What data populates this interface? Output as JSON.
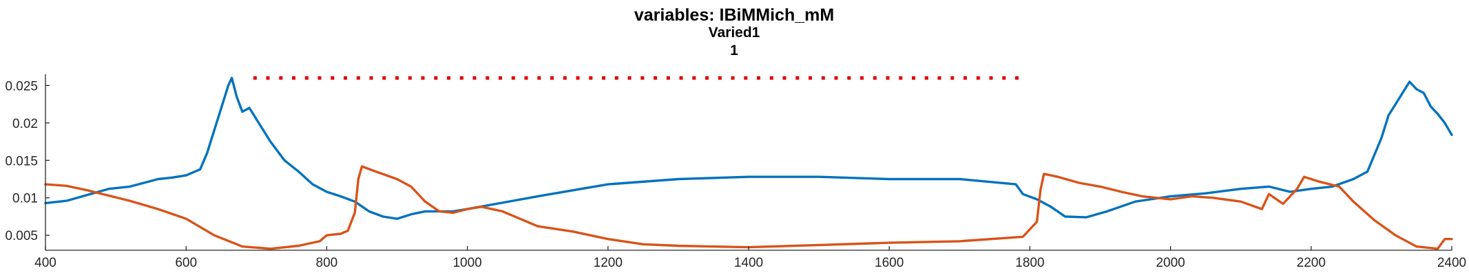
{
  "chart_data": {
    "type": "line",
    "title": "variables: IBiMMich_mM",
    "subtitle": "Varied1",
    "subtitle2": "1",
    "xlabel": "",
    "ylabel": "",
    "xlim": [
      400,
      2400
    ],
    "ylim": [
      0.003,
      0.0265
    ],
    "xticks": [
      400,
      600,
      800,
      1000,
      1200,
      1400,
      1600,
      1800,
      2000,
      2200,
      2400
    ],
    "xtick_labels": [
      "400",
      "600",
      "800",
      "1000",
      "1200",
      "1400",
      "1600",
      "1800",
      "2000",
      "2200",
      "2400"
    ],
    "yticks": [
      0.005,
      0.01,
      0.015,
      0.02,
      0.025
    ],
    "ytick_labels": [
      "0.005",
      "0.01",
      "0.015",
      "0.02",
      "0.025"
    ],
    "grid": false,
    "series": [
      {
        "color": "#0072BD",
        "points": [
          [
            400,
            0.0093
          ],
          [
            430,
            0.0096
          ],
          [
            460,
            0.0104
          ],
          [
            490,
            0.0112
          ],
          [
            520,
            0.0115
          ],
          [
            540,
            0.012
          ],
          [
            560,
            0.0125
          ],
          [
            580,
            0.0127
          ],
          [
            600,
            0.013
          ],
          [
            620,
            0.0138
          ],
          [
            630,
            0.016
          ],
          [
            640,
            0.019
          ],
          [
            650,
            0.022
          ],
          [
            660,
            0.025
          ],
          [
            665,
            0.026
          ],
          [
            672,
            0.0235
          ],
          [
            680,
            0.0215
          ],
          [
            690,
            0.022
          ],
          [
            700,
            0.0205
          ],
          [
            720,
            0.0175
          ],
          [
            740,
            0.015
          ],
          [
            760,
            0.0135
          ],
          [
            780,
            0.0118
          ],
          [
            800,
            0.0108
          ],
          [
            820,
            0.0102
          ],
          [
            840,
            0.0095
          ],
          [
            860,
            0.0082
          ],
          [
            880,
            0.0075
          ],
          [
            900,
            0.0072
          ],
          [
            920,
            0.0078
          ],
          [
            940,
            0.0082
          ],
          [
            960,
            0.0082
          ],
          [
            980,
            0.0082
          ],
          [
            1000,
            0.0085
          ],
          [
            1100,
            0.0102
          ],
          [
            1200,
            0.0118
          ],
          [
            1300,
            0.0125
          ],
          [
            1400,
            0.0128
          ],
          [
            1500,
            0.0128
          ],
          [
            1600,
            0.0125
          ],
          [
            1700,
            0.0125
          ],
          [
            1780,
            0.0118
          ],
          [
            1790,
            0.0105
          ],
          [
            1810,
            0.0098
          ],
          [
            1830,
            0.0088
          ],
          [
            1850,
            0.0075
          ],
          [
            1880,
            0.0074
          ],
          [
            1910,
            0.0082
          ],
          [
            1950,
            0.0095
          ],
          [
            2000,
            0.0102
          ],
          [
            2050,
            0.0106
          ],
          [
            2100,
            0.0112
          ],
          [
            2140,
            0.0115
          ],
          [
            2170,
            0.0108
          ],
          [
            2200,
            0.0112
          ],
          [
            2230,
            0.0115
          ],
          [
            2260,
            0.0125
          ],
          [
            2280,
            0.0135
          ],
          [
            2300,
            0.018
          ],
          [
            2310,
            0.021
          ],
          [
            2320,
            0.0225
          ],
          [
            2330,
            0.024
          ],
          [
            2340,
            0.0255
          ],
          [
            2350,
            0.0245
          ],
          [
            2360,
            0.024
          ],
          [
            2370,
            0.0222
          ],
          [
            2380,
            0.0212
          ],
          [
            2390,
            0.02
          ],
          [
            2400,
            0.0184
          ]
        ]
      },
      {
        "color": "#D95319",
        "points": [
          [
            400,
            0.0118
          ],
          [
            430,
            0.0116
          ],
          [
            460,
            0.011
          ],
          [
            490,
            0.0103
          ],
          [
            520,
            0.0096
          ],
          [
            560,
            0.0085
          ],
          [
            600,
            0.0072
          ],
          [
            640,
            0.005
          ],
          [
            680,
            0.0035
          ],
          [
            720,
            0.0032
          ],
          [
            760,
            0.0036
          ],
          [
            790,
            0.0042
          ],
          [
            800,
            0.005
          ],
          [
            820,
            0.0052
          ],
          [
            830,
            0.0056
          ],
          [
            840,
            0.008
          ],
          [
            845,
            0.0125
          ],
          [
            850,
            0.0142
          ],
          [
            870,
            0.0135
          ],
          [
            900,
            0.0125
          ],
          [
            920,
            0.0115
          ],
          [
            940,
            0.0095
          ],
          [
            960,
            0.0082
          ],
          [
            980,
            0.008
          ],
          [
            1000,
            0.0085
          ],
          [
            1020,
            0.0088
          ],
          [
            1050,
            0.0082
          ],
          [
            1080,
            0.007
          ],
          [
            1100,
            0.0062
          ],
          [
            1150,
            0.0055
          ],
          [
            1200,
            0.0045
          ],
          [
            1250,
            0.0038
          ],
          [
            1300,
            0.0036
          ],
          [
            1400,
            0.0034
          ],
          [
            1500,
            0.0037
          ],
          [
            1600,
            0.004
          ],
          [
            1700,
            0.0042
          ],
          [
            1790,
            0.0048
          ],
          [
            1810,
            0.0068
          ],
          [
            1815,
            0.011
          ],
          [
            1820,
            0.0132
          ],
          [
            1840,
            0.0128
          ],
          [
            1870,
            0.012
          ],
          [
            1900,
            0.0115
          ],
          [
            1930,
            0.0108
          ],
          [
            1960,
            0.0102
          ],
          [
            2000,
            0.0098
          ],
          [
            2030,
            0.0102
          ],
          [
            2060,
            0.01
          ],
          [
            2100,
            0.0095
          ],
          [
            2130,
            0.0085
          ],
          [
            2140,
            0.0105
          ],
          [
            2160,
            0.0092
          ],
          [
            2180,
            0.0112
          ],
          [
            2190,
            0.0128
          ],
          [
            2210,
            0.0122
          ],
          [
            2240,
            0.0115
          ],
          [
            2260,
            0.0095
          ],
          [
            2290,
            0.007
          ],
          [
            2320,
            0.005
          ],
          [
            2350,
            0.0035
          ],
          [
            2380,
            0.0032
          ],
          [
            2390,
            0.0045
          ],
          [
            2400,
            0.0045
          ]
        ]
      },
      {
        "color": "#E60000",
        "style": "dotted",
        "points": [
          [
            698,
            0.026
          ],
          [
            1785,
            0.026
          ]
        ]
      }
    ]
  }
}
